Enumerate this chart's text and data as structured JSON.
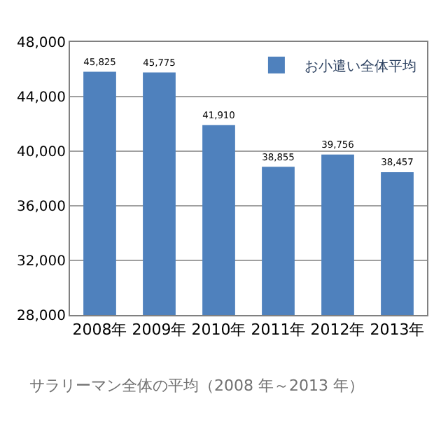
{
  "chart_data": {
    "type": "bar",
    "categories": [
      "2008年",
      "2009年",
      "2010年",
      "2011年",
      "2012年",
      "2013年"
    ],
    "series": [
      {
        "name": "お小遣い全体平均",
        "color": "#4f81bd",
        "values": [
          45825,
          45775,
          41910,
          38855,
          39756,
          38457
        ]
      }
    ],
    "value_labels": [
      "45,825",
      "45,775",
      "41,910",
      "38,855",
      "39,756",
      "38,457"
    ],
    "ylim": [
      28000,
      48000
    ],
    "yticks": [
      {
        "value": 28000,
        "label": "28,000"
      },
      {
        "value": 32000,
        "label": "32,000"
      },
      {
        "value": 36000,
        "label": "36,000"
      },
      {
        "value": 40000,
        "label": "40,000"
      },
      {
        "value": 44000,
        "label": "44,000"
      },
      {
        "value": 48000,
        "label": "48,000"
      }
    ],
    "grid": "y",
    "legend": "top right",
    "annotations": [
      "サラリーマン全体の平均（2008 年～2013 年）"
    ]
  }
}
